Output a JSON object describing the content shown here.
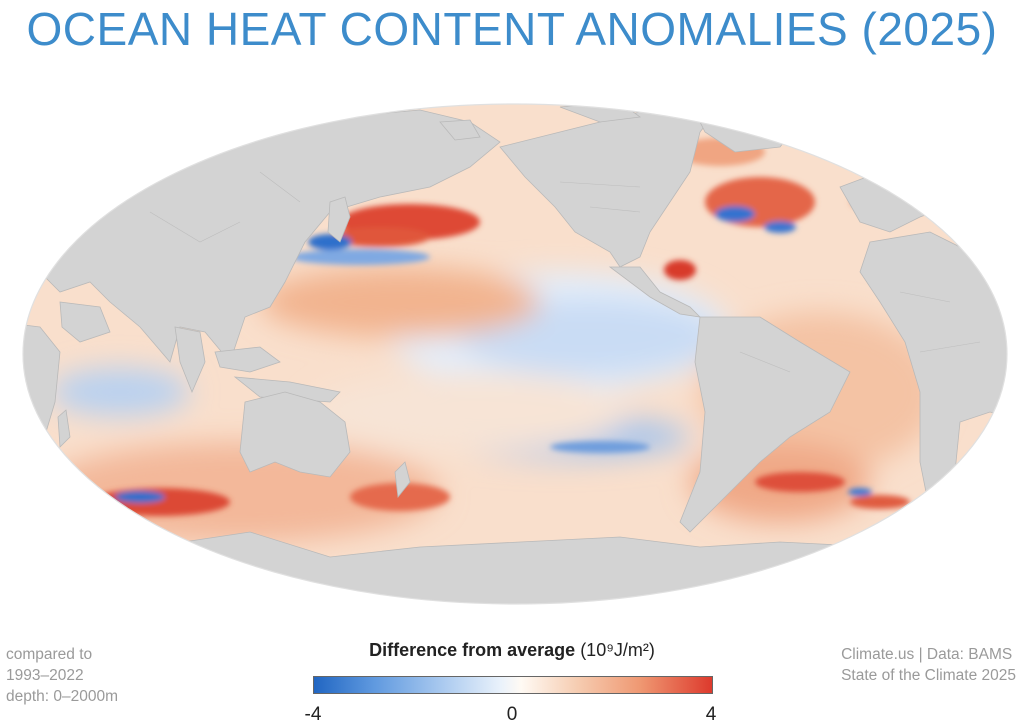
{
  "title": "OCEAN HEAT CONTENT ANOMALIES (2025)",
  "legend": {
    "title": "Difference from average",
    "unit": "(10⁹J/m²)",
    "min_label": "-4",
    "mid_label": "0",
    "max_label": "4",
    "range": [
      -4,
      4
    ],
    "colors": {
      "negative": "#2166c2",
      "neutral": "#ffffff",
      "positive": "#dd3a2d"
    }
  },
  "notes_left": [
    "compared to",
    "1993–2022",
    "depth: 0–2000m"
  ],
  "notes_right": [
    "Climate.us | Data: BAMS",
    "State of the Climate 2025"
  ],
  "colors": {
    "title": "#3d8ccb",
    "land": "#d3d3d3",
    "ocean_outline": "#e6e6e6",
    "notes": "#9a9a9a"
  },
  "map": {
    "projection": "Mollweide-style ellipse, Pacific-centered",
    "anomaly_regions": [
      {
        "area": "Kuroshio Extension / North Pacific",
        "anomaly": "strong positive"
      },
      {
        "area": "North Atlantic / Gulf Stream",
        "anomaly": "mixed strong positive and negative"
      },
      {
        "area": "Equatorial eastern Pacific",
        "anomaly": "negative"
      },
      {
        "area": "South Pacific band",
        "anomaly": "negative"
      },
      {
        "area": "Southern Indian Ocean",
        "anomaly": "mixed strong positive and negative"
      },
      {
        "area": "Western Indian Ocean",
        "anomaly": "negative"
      },
      {
        "area": "Gulf of Mexico",
        "anomaly": "strong positive"
      },
      {
        "area": "South Atlantic",
        "anomaly": "positive"
      }
    ]
  }
}
